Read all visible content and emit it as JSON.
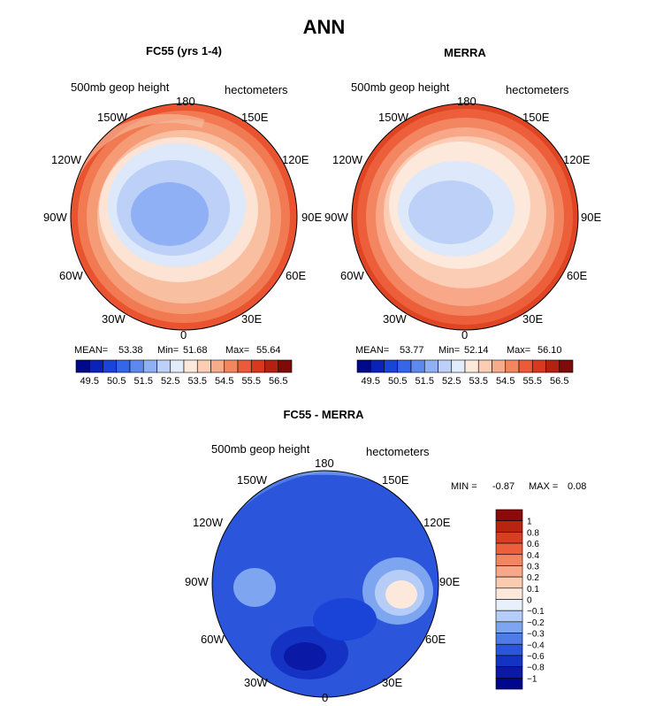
{
  "title": "ANN",
  "panels": [
    {
      "title": "FC55 (yrs 1-4)",
      "variable_label": "500mb geop height",
      "units_label": "hectometers",
      "lon_labels": [
        "180",
        "150E",
        "120E",
        "90E",
        "60E",
        "30E",
        "0",
        "30W",
        "60W",
        "90W",
        "120W",
        "150W"
      ],
      "stats": {
        "mean_label": "MEAN=",
        "mean": "53.38",
        "min_label": "Min=",
        "min": "51.68",
        "max_label": "Max=",
        "max": "55.64"
      },
      "colorbar": {
        "tick_labels": [
          "49.5",
          "50.5",
          "51.5",
          "52.5",
          "53.5",
          "54.5",
          "55.5",
          "56.5"
        ],
        "colors": [
          "#00098a",
          "#0a22b5",
          "#1a44d8",
          "#3565e8",
          "#5d88f0",
          "#8fb0f5",
          "#bcd0f8",
          "#e2ecfb",
          "#fde8dc",
          "#fbcdb4",
          "#f8ab8a",
          "#f3855f",
          "#ec5b37",
          "#d8391e",
          "#b32111",
          "#800a0a"
        ]
      }
    },
    {
      "title": "MERRA",
      "variable_label": "500mb geop height",
      "units_label": "hectometers",
      "lon_labels": [
        "180",
        "150E",
        "120E",
        "90E",
        "60E",
        "30E",
        "0",
        "30W",
        "60W",
        "90W",
        "120W",
        "150W"
      ],
      "stats": {
        "mean_label": "MEAN=",
        "mean": "53.77",
        "min_label": "Min=",
        "min": "52.14",
        "max_label": "Max=",
        "max": "56.10"
      },
      "colorbar": {
        "tick_labels": [
          "49.5",
          "50.5",
          "51.5",
          "52.5",
          "53.5",
          "54.5",
          "55.5",
          "56.5"
        ],
        "colors": [
          "#00098a",
          "#0a22b5",
          "#1a44d8",
          "#3565e8",
          "#5d88f0",
          "#8fb0f5",
          "#bcd0f8",
          "#e2ecfb",
          "#fde8dc",
          "#fbcdb4",
          "#f8ab8a",
          "#f3855f",
          "#ec5b37",
          "#d8391e",
          "#b32111",
          "#800a0a"
        ]
      }
    }
  ],
  "diff_panel": {
    "title": "FC55 - MERRA",
    "variable_label": "500mb geop height",
    "units_label": "hectometers",
    "lon_labels": [
      "180",
      "150E",
      "120E",
      "90E",
      "60E",
      "30E",
      "0",
      "30W",
      "60W",
      "90W",
      "120W",
      "150W"
    ],
    "stats": {
      "min_label": "MIN =",
      "min": "-0.87",
      "max_label": "MAX =",
      "max": "0.08"
    },
    "colorbar": {
      "tick_labels": [
        "1",
        "0.8",
        "0.6",
        "0.4",
        "0.3",
        "0.2",
        "0.1",
        "0",
        "−0.1",
        "−0.2",
        "−0.3",
        "−0.4",
        "−0.6",
        "−0.8",
        "−1"
      ],
      "colors": [
        "#8b0a0a",
        "#b82412",
        "#d83e22",
        "#ec5f3d",
        "#f48462",
        "#f8a888",
        "#fbcbb0",
        "#fde8dc",
        "#e8f1fb",
        "#b6cdf7",
        "#7ea5f0",
        "#4e7be6",
        "#2b56dc",
        "#1433c4",
        "#0a1aa6",
        "#00078a"
      ]
    }
  }
}
